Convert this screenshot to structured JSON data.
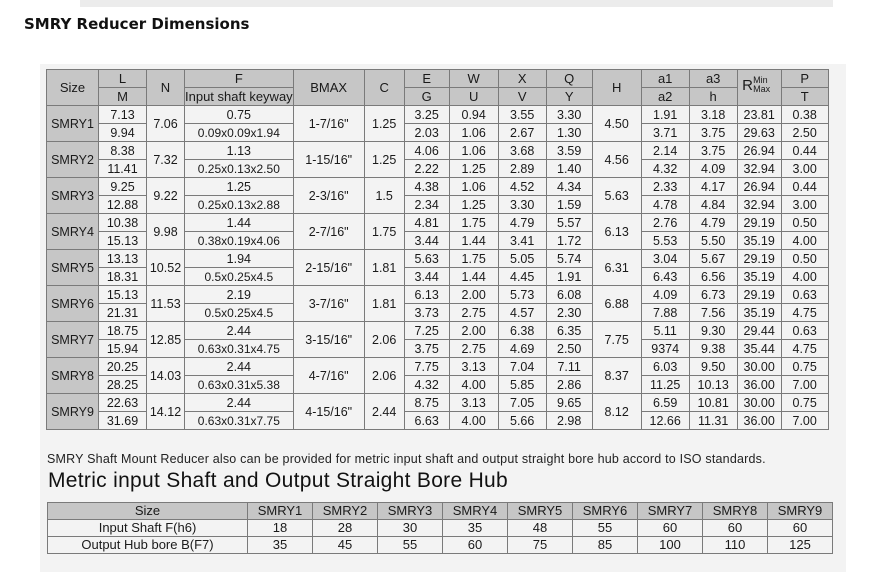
{
  "page": {
    "title": "SMRY Reducer Dimensions"
  },
  "dims_table": {
    "headers": {
      "size": "Size",
      "L": "L",
      "M": "M",
      "N": "N",
      "F": "F",
      "F_sub": "Input shaft keyway",
      "BMAX": "BMAX",
      "C": "C",
      "E": "E",
      "G": "G",
      "W": "W",
      "U": "U",
      "X": "X",
      "V": "V",
      "Q": "Q",
      "Y": "Y",
      "H": "H",
      "a1": "a1",
      "a2": "a2",
      "a3": "a3",
      "h": "h",
      "R": "R",
      "R_min": "Min",
      "R_max": "Max",
      "P": "P",
      "T": "T"
    },
    "rows": [
      {
        "size": "SMRY1",
        "L": "7.13",
        "M": "9.94",
        "N": "7.06",
        "F": "0.75",
        "keyway": "0.09x0.09x1.94",
        "BMAX": "1-7/16\"",
        "C": "1.25",
        "E": "3.25",
        "G": "2.03",
        "W": "0.94",
        "U": "1.06",
        "X": "3.55",
        "V": "2.67",
        "Q": "3.30",
        "Y": "1.30",
        "H": "4.50",
        "a1": "1.91",
        "a2": "3.71",
        "a3": "3.18",
        "h": "3.75",
        "Rmin": "23.81",
        "Rmax": "29.63",
        "P": "0.38",
        "T": "2.50"
      },
      {
        "size": "SMRY2",
        "L": "8.38",
        "M": "11.41",
        "N": "7.32",
        "F": "1.13",
        "keyway": "0.25x0.13x2.50",
        "BMAX": "1-15/16\"",
        "C": "1.25",
        "E": "4.06",
        "G": "2.22",
        "W": "1.06",
        "U": "1.25",
        "X": "3.68",
        "V": "2.89",
        "Q": "3.59",
        "Y": "1.40",
        "H": "4.56",
        "a1": "2.14",
        "a2": "4.32",
        "a3": "3.75",
        "h": "4.09",
        "Rmin": "26.94",
        "Rmax": "32.94",
        "P": "0.44",
        "T": "3.00"
      },
      {
        "size": "SMRY3",
        "L": "9.25",
        "M": "12.88",
        "N": "9.22",
        "F": "1.25",
        "keyway": "0.25x0.13x2.88",
        "BMAX": "2-3/16\"",
        "C": "1.5",
        "E": "4.38",
        "G": "2.34",
        "W": "1.06",
        "U": "1.25",
        "X": "4.52",
        "V": "3.30",
        "Q": "4.34",
        "Y": "1.59",
        "H": "5.63",
        "a1": "2.33",
        "a2": "4.78",
        "a3": "4.17",
        "h": "4.84",
        "Rmin": "26.94",
        "Rmax": "32.94",
        "P": "0.44",
        "T": "3.00"
      },
      {
        "size": "SMRY4",
        "L": "10.38",
        "M": "15.13",
        "N": "9.98",
        "F": "1.44",
        "keyway": "0.38x0.19x4.06",
        "BMAX": "2-7/16\"",
        "C": "1.75",
        "E": "4.81",
        "G": "3.44",
        "W": "1.75",
        "U": "1.44",
        "X": "4.79",
        "V": "3.41",
        "Q": "5.57",
        "Y": "1.72",
        "H": "6.13",
        "a1": "2.76",
        "a2": "5.53",
        "a3": "4.79",
        "h": "5.50",
        "Rmin": "29.19",
        "Rmax": "35.19",
        "P": "0.50",
        "T": "4.00"
      },
      {
        "size": "SMRY5",
        "L": "13.13",
        "M": "18.31",
        "N": "10.52",
        "F": "1.94",
        "keyway": "0.5x0.25x4.5",
        "BMAX": "2-15/16\"",
        "C": "1.81",
        "E": "5.63",
        "G": "3.44",
        "W": "1.75",
        "U": "1.44",
        "X": "5.05",
        "V": "4.45",
        "Q": "5.74",
        "Y": "1.91",
        "H": "6.31",
        "a1": "3.04",
        "a2": "6.43",
        "a3": "5.67",
        "h": "6.56",
        "Rmin": "29.19",
        "Rmax": "35.19",
        "P": "0.50",
        "T": "4.00"
      },
      {
        "size": "SMRY6",
        "L": "15.13",
        "M": "21.31",
        "N": "11.53",
        "F": "2.19",
        "keyway": "0.5x0.25x4.5",
        "BMAX": "3-7/16\"",
        "C": "1.81",
        "E": "6.13",
        "G": "3.73",
        "W": "2.00",
        "U": "2.75",
        "X": "5.73",
        "V": "4.57",
        "Q": "6.08",
        "Y": "2.30",
        "H": "6.88",
        "a1": "4.09",
        "a2": "7.88",
        "a3": "6.73",
        "h": "7.56",
        "Rmin": "29.19",
        "Rmax": "35.19",
        "P": "0.63",
        "T": "4.75"
      },
      {
        "size": "SMRY7",
        "L": "18.75",
        "M": "15.94",
        "N": "12.85",
        "F": "2.44",
        "keyway": "0.63x0.31x4.75",
        "BMAX": "3-15/16\"",
        "C": "2.06",
        "E": "7.25",
        "G": "3.75",
        "W": "2.00",
        "U": "2.75",
        "X": "6.38",
        "V": "4.69",
        "Q": "6.35",
        "Y": "2.50",
        "H": "7.75",
        "a1": "5.11",
        "a2": "9374",
        "a3": "9.30",
        "h": "9.38",
        "Rmin": "29.44",
        "Rmax": "35.44",
        "P": "0.63",
        "T": "4.75"
      },
      {
        "size": "SMRY8",
        "L": "20.25",
        "M": "28.25",
        "N": "14.03",
        "F": "2.44",
        "keyway": "0.63x0.31x5.38",
        "BMAX": "4-7/16\"",
        "C": "2.06",
        "E": "7.75",
        "G": "4.32",
        "W": "3.13",
        "U": "4.00",
        "X": "7.04",
        "V": "5.85",
        "Q": "7.11",
        "Y": "2.86",
        "H": "8.37",
        "a1": "6.03",
        "a2": "11.25",
        "a3": "9.50",
        "h": "10.13",
        "Rmin": "30.00",
        "Rmax": "36.00",
        "P": "0.75",
        "T": "7.00"
      },
      {
        "size": "SMRY9",
        "L": "22.63",
        "M": "31.69",
        "N": "14.12",
        "F": "2.44",
        "keyway": "0.63x0.31x7.75",
        "BMAX": "4-15/16\"",
        "C": "2.44",
        "E": "8.75",
        "G": "6.63",
        "W": "3.13",
        "U": "4.00",
        "X": "7.05",
        "V": "5.66",
        "Q": "9.65",
        "Y": "2.98",
        "H": "8.12",
        "a1": "6.59",
        "a2": "12.66",
        "a3": "10.81",
        "h": "11.31",
        "Rmin": "30.00",
        "Rmax": "36.00",
        "P": "0.75",
        "T": "7.00"
      }
    ]
  },
  "note": "SMRY Shaft Mount Reducer also can be provided for metric input shaft and output straight bore hub accord to ISO standards.",
  "metric": {
    "title": "Metric input Shaft and Output Straight Bore Hub",
    "size_label": "Size",
    "sizes": [
      "SMRY1",
      "SMRY2",
      "SMRY3",
      "SMRY4",
      "SMRY5",
      "SMRY6",
      "SMRY7",
      "SMRY8",
      "SMRY9"
    ],
    "rows": [
      {
        "label": "Input Shaft F(h6)",
        "values": [
          "18",
          "28",
          "30",
          "35",
          "48",
          "55",
          "60",
          "60",
          "60"
        ]
      },
      {
        "label": "Output Hub bore B(F7)",
        "values": [
          "35",
          "45",
          "55",
          "60",
          "75",
          "85",
          "100",
          "110",
          "125"
        ]
      }
    ]
  }
}
